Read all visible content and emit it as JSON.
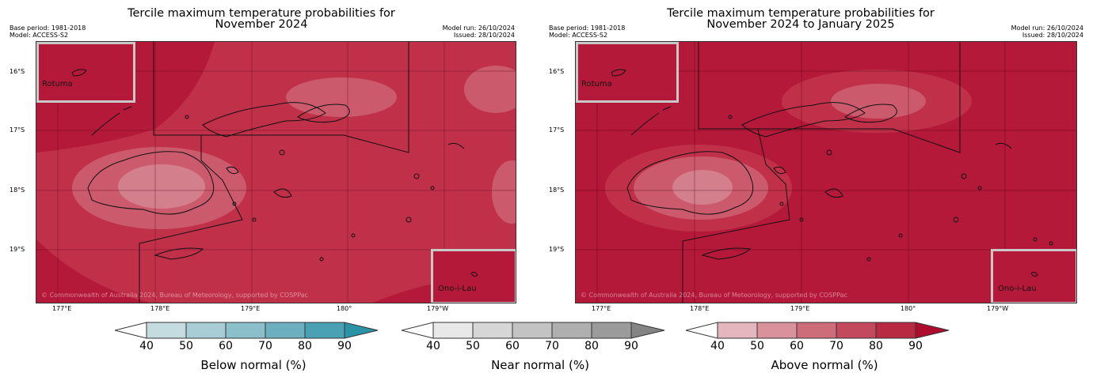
{
  "left": {
    "title_line1": "Tercile maximum temperature probabilities for",
    "title_line2": "November 2024",
    "base_period": "Base period: 1981-2018",
    "model": "Model: ACCESS-S2",
    "model_run": "Model run: 26/10/2024",
    "issued": "Issued: 28/10/2024",
    "inset_top": "Rotuma",
    "inset_bottom": "Ono-i-Lau",
    "copyright": "© Commonwealth of Australia 2024, Bureau of Meteorology, supported by COSPPac",
    "lat_labels": [
      "16°S",
      "17°S",
      "18°S",
      "19°S"
    ],
    "lon_labels": [
      "177°E",
      "178°E",
      "179°E",
      "180°",
      "179°W"
    ]
  },
  "right": {
    "title_line1": "Tercile maximum temperature probabilities for",
    "title_line2": "November 2024 to January 2025",
    "base_period": "Base period: 1981-2018",
    "model": "Model: ACCESS-S2",
    "model_run": "Model run: 26/10/2024",
    "issued": "Issued: 28/10/2024",
    "inset_top": "Rotuma",
    "inset_bottom": "Ono-i-Lau",
    "copyright": "© Commonwealth of Australia 2024, Bureau of Meteorology, supported by COSPPac",
    "lat_labels": [
      "16°S",
      "17°S",
      "18°S",
      "19°S"
    ],
    "lon_labels": [
      "177°E",
      "178°E",
      "179°E",
      "180°",
      "179°W"
    ]
  },
  "colorbars": [
    {
      "name": "Below normal (%)",
      "ticks": [
        "40",
        "50",
        "60",
        "70",
        "80",
        "90"
      ],
      "colors": [
        "#ffffff",
        "#c4dbe0",
        "#a8cdd5",
        "#8bbfca",
        "#6cb0bf",
        "#4aa1b3",
        "#2b93a6"
      ]
    },
    {
      "name": "Near normal (%)",
      "ticks": [
        "40",
        "50",
        "60",
        "70",
        "80",
        "90"
      ],
      "colors": [
        "#ffffff",
        "#e8e8e8",
        "#d6d6d6",
        "#c3c3c3",
        "#afafaf",
        "#9b9b9b",
        "#848484"
      ]
    },
    {
      "name": "Above normal (%)",
      "ticks": [
        "40",
        "50",
        "60",
        "70",
        "80",
        "90"
      ],
      "colors": [
        "#ffffff",
        "#e4b6bd",
        "#d9919b",
        "#ce6d7a",
        "#c34a5c",
        "#b82a42",
        "#ad0c2c"
      ]
    }
  ],
  "colors": {
    "above_90": "#b5193a",
    "above_80": "#c13049",
    "above_70": "#cb5a6c",
    "above_60": "#d37f8c"
  }
}
